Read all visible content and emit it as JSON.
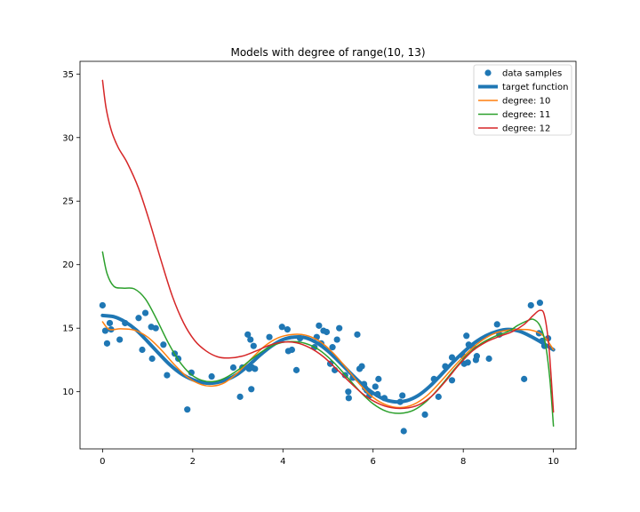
{
  "chart_data": {
    "type": "scatter",
    "title": "Models with degree of range(10, 13)",
    "xlabel": "",
    "ylabel": "",
    "xlim": [
      -0.5,
      10.5
    ],
    "ylim": [
      5.5,
      36.0
    ],
    "xticks": [
      0,
      2,
      4,
      6,
      8,
      10
    ],
    "yticks": [
      10,
      15,
      20,
      25,
      30,
      35
    ],
    "xtick_labels": [
      "0",
      "2",
      "4",
      "6",
      "8",
      "10"
    ],
    "ytick_labels": [
      "10",
      "15",
      "20",
      "25",
      "30",
      "35"
    ],
    "grid": false,
    "legend": {
      "position": "top-right",
      "entries": [
        {
          "label": "data samples",
          "kind": "marker",
          "color": "#1f77b4"
        },
        {
          "label": "target function",
          "kind": "thick-line",
          "color": "#1f77b4"
        },
        {
          "label": "degree: 10",
          "kind": "line",
          "color": "#ff7f0e"
        },
        {
          "label": "degree: 11",
          "kind": "line",
          "color": "#2ca02c"
        },
        {
          "label": "degree: 12",
          "kind": "line",
          "color": "#d62728"
        }
      ]
    },
    "samples": {
      "name": "data samples",
      "color": "#1f77b4",
      "points": [
        [
          0.0,
          16.8
        ],
        [
          0.06,
          14.8
        ],
        [
          0.1,
          13.8
        ],
        [
          0.16,
          15.4
        ],
        [
          0.19,
          14.9
        ],
        [
          0.38,
          14.1
        ],
        [
          0.5,
          15.4
        ],
        [
          0.8,
          15.8
        ],
        [
          0.88,
          13.3
        ],
        [
          0.95,
          16.2
        ],
        [
          1.08,
          15.1
        ],
        [
          1.1,
          12.6
        ],
        [
          1.18,
          15.0
        ],
        [
          1.35,
          13.7
        ],
        [
          1.43,
          11.3
        ],
        [
          1.6,
          13.0
        ],
        [
          1.68,
          12.6
        ],
        [
          1.88,
          8.6
        ],
        [
          1.97,
          11.5
        ],
        [
          2.42,
          11.2
        ],
        [
          2.9,
          11.9
        ],
        [
          3.05,
          9.6
        ],
        [
          3.1,
          11.9
        ],
        [
          3.22,
          14.5
        ],
        [
          3.25,
          11.8
        ],
        [
          3.28,
          14.1
        ],
        [
          3.3,
          10.2
        ],
        [
          3.32,
          11.9
        ],
        [
          3.35,
          13.6
        ],
        [
          3.38,
          11.8
        ],
        [
          3.7,
          14.3
        ],
        [
          3.98,
          15.1
        ],
        [
          4.1,
          14.9
        ],
        [
          4.12,
          13.2
        ],
        [
          4.2,
          13.3
        ],
        [
          4.3,
          11.7
        ],
        [
          4.38,
          14.2
        ],
        [
          4.7,
          13.5
        ],
        [
          4.75,
          14.3
        ],
        [
          4.8,
          15.2
        ],
        [
          4.85,
          13.8
        ],
        [
          4.9,
          14.8
        ],
        [
          4.97,
          14.7
        ],
        [
          5.05,
          12.2
        ],
        [
          5.1,
          13.5
        ],
        [
          5.15,
          11.7
        ],
        [
          5.2,
          14.1
        ],
        [
          5.25,
          15.0
        ],
        [
          5.38,
          11.3
        ],
        [
          5.45,
          10.0
        ],
        [
          5.46,
          9.5
        ],
        [
          5.55,
          11.1
        ],
        [
          5.65,
          14.5
        ],
        [
          5.7,
          11.8
        ],
        [
          5.75,
          12.0
        ],
        [
          5.8,
          10.6
        ],
        [
          5.82,
          10.3
        ],
        [
          5.86,
          10.1
        ],
        [
          5.92,
          9.7
        ],
        [
          6.05,
          10.4
        ],
        [
          6.1,
          9.8
        ],
        [
          6.12,
          11.0
        ],
        [
          6.25,
          9.5
        ],
        [
          6.6,
          9.2
        ],
        [
          6.65,
          9.7
        ],
        [
          6.68,
          6.9
        ],
        [
          7.15,
          8.2
        ],
        [
          7.35,
          11.0
        ],
        [
          7.45,
          9.6
        ],
        [
          7.6,
          12.0
        ],
        [
          7.75,
          10.9
        ],
        [
          7.75,
          12.7
        ],
        [
          8.0,
          12.8
        ],
        [
          8.02,
          12.2
        ],
        [
          8.07,
          14.4
        ],
        [
          8.1,
          12.3
        ],
        [
          8.12,
          13.7
        ],
        [
          8.22,
          13.5
        ],
        [
          8.28,
          12.5
        ],
        [
          8.3,
          12.8
        ],
        [
          8.57,
          12.6
        ],
        [
          8.75,
          15.3
        ],
        [
          8.8,
          14.5
        ],
        [
          9.35,
          11.0
        ],
        [
          9.5,
          16.8
        ],
        [
          9.68,
          14.6
        ],
        [
          9.7,
          17.0
        ],
        [
          9.75,
          14.0
        ],
        [
          9.8,
          13.6
        ],
        [
          9.88,
          14.2
        ]
      ]
    },
    "series": [
      {
        "name": "target function",
        "color": "#1f77b4",
        "x": [
          0,
          0.25,
          0.5,
          0.75,
          1.0,
          1.25,
          1.5,
          1.75,
          2.0,
          2.25,
          2.5,
          2.75,
          3.0,
          3.25,
          3.5,
          3.75,
          4.0,
          4.25,
          4.5,
          4.75,
          5.0,
          5.25,
          5.5,
          5.75,
          6.0,
          6.25,
          6.5,
          6.75,
          7.0,
          7.25,
          7.5,
          7.75,
          8.0,
          8.25,
          8.5,
          8.75,
          9.0,
          9.25,
          9.5,
          9.75,
          10.0
        ],
        "y": [
          16.0,
          15.9,
          15.5,
          14.85,
          13.95,
          13.0,
          12.1,
          11.4,
          10.95,
          10.7,
          10.7,
          10.95,
          11.4,
          12.1,
          12.9,
          13.6,
          14.1,
          14.3,
          14.25,
          13.85,
          13.2,
          12.35,
          11.45,
          10.6,
          9.9,
          9.4,
          9.2,
          9.3,
          9.7,
          10.4,
          11.3,
          12.25,
          13.1,
          13.85,
          14.4,
          14.75,
          14.9,
          14.75,
          14.35,
          13.85,
          13.3
        ]
      },
      {
        "name": "degree: 10",
        "color": "#ff7f0e",
        "x": [
          0,
          0.15,
          0.4,
          0.7,
          1.0,
          1.3,
          1.6,
          1.9,
          2.2,
          2.45,
          2.7,
          3.0,
          3.3,
          3.6,
          3.9,
          4.2,
          4.5,
          4.8,
          5.1,
          5.4,
          5.7,
          6.0,
          6.3,
          6.6,
          6.9,
          7.2,
          7.5,
          7.8,
          8.1,
          8.4,
          8.7,
          9.0,
          9.3,
          9.5,
          9.7,
          9.85,
          10.0
        ],
        "y": [
          15.5,
          14.9,
          14.95,
          14.85,
          14.3,
          13.3,
          12.1,
          11.1,
          10.55,
          10.45,
          10.7,
          11.5,
          12.6,
          13.6,
          14.25,
          14.5,
          14.45,
          14.0,
          13.1,
          11.9,
          10.6,
          9.55,
          8.95,
          8.75,
          9.0,
          9.7,
          10.8,
          12.0,
          13.1,
          14.0,
          14.6,
          14.85,
          14.9,
          14.85,
          14.6,
          14.1,
          13.3
        ]
      },
      {
        "name": "degree: 11",
        "color": "#2ca02c",
        "x": [
          0,
          0.1,
          0.25,
          0.45,
          0.7,
          0.95,
          1.2,
          1.45,
          1.7,
          1.95,
          2.2,
          2.45,
          2.7,
          3.0,
          3.3,
          3.6,
          3.9,
          4.2,
          4.5,
          4.8,
          5.1,
          5.4,
          5.7,
          6.0,
          6.3,
          6.6,
          6.9,
          7.2,
          7.5,
          7.8,
          8.1,
          8.4,
          8.7,
          9.0,
          9.2,
          9.4,
          9.55,
          9.7,
          9.82,
          9.92,
          10.0
        ],
        "y": [
          21.0,
          19.3,
          18.3,
          18.15,
          18.1,
          17.3,
          15.7,
          13.9,
          12.4,
          11.4,
          10.9,
          10.8,
          11.05,
          11.7,
          12.55,
          13.3,
          13.8,
          13.95,
          13.8,
          13.3,
          12.4,
          11.25,
          10.05,
          9.05,
          8.45,
          8.3,
          8.55,
          9.3,
          10.45,
          11.75,
          12.95,
          13.8,
          14.35,
          14.75,
          15.2,
          15.55,
          15.7,
          15.2,
          13.8,
          11.0,
          7.3
        ]
      },
      {
        "name": "degree: 12",
        "color": "#d62728",
        "x": [
          0,
          0.08,
          0.2,
          0.35,
          0.55,
          0.8,
          1.05,
          1.3,
          1.55,
          1.8,
          2.05,
          2.3,
          2.55,
          2.8,
          3.1,
          3.4,
          3.7,
          4.0,
          4.3,
          4.6,
          4.9,
          5.2,
          5.5,
          5.8,
          6.1,
          6.4,
          6.7,
          7.0,
          7.3,
          7.6,
          7.9,
          8.2,
          8.5,
          8.8,
          9.1,
          9.35,
          9.55,
          9.7,
          9.8,
          9.9,
          10.0
        ],
        "y": [
          34.5,
          32.3,
          30.5,
          29.2,
          28.0,
          26.0,
          23.3,
          20.3,
          17.5,
          15.4,
          14.0,
          13.2,
          12.75,
          12.65,
          12.8,
          13.2,
          13.65,
          13.9,
          13.85,
          13.45,
          12.75,
          11.75,
          10.7,
          9.75,
          9.1,
          8.75,
          8.7,
          8.95,
          9.65,
          10.8,
          12.1,
          13.2,
          13.9,
          14.35,
          14.75,
          15.3,
          16.0,
          16.4,
          16.0,
          13.5,
          8.4
        ]
      }
    ]
  }
}
